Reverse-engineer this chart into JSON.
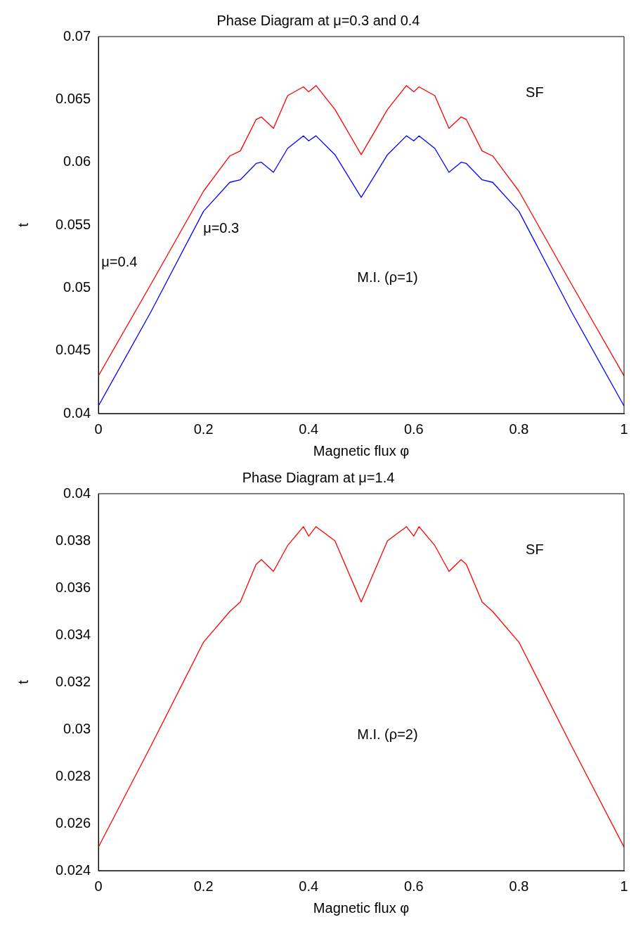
{
  "chart_data": [
    {
      "type": "line",
      "title": "Phase Diagram at μ=0.3 and 0.4",
      "xlabel": "Magnetic flux φ",
      "ylabel": "t",
      "x": [
        0,
        0.1,
        0.2,
        0.25,
        0.27,
        0.3,
        0.31,
        0.333,
        0.36,
        0.39,
        0.4,
        0.414,
        0.45,
        0.5,
        0.55,
        0.586,
        0.6,
        0.61,
        0.64,
        0.667,
        0.69,
        0.7,
        0.73,
        0.75,
        0.8,
        0.9,
        1
      ],
      "series": [
        {
          "name": "μ=0.4",
          "color": "#ff0000",
          "values": [
            0.043,
            0.0503,
            0.0577,
            0.0605,
            0.0609,
            0.0634,
            0.0636,
            0.0627,
            0.0653,
            0.066,
            0.0656,
            0.0661,
            0.0642,
            0.0606,
            0.0642,
            0.0661,
            0.0656,
            0.066,
            0.0653,
            0.0627,
            0.0636,
            0.0634,
            0.0609,
            0.0605,
            0.0577,
            0.0503,
            0.043
          ]
        },
        {
          "name": "μ=0.3",
          "color": "#0000ff",
          "values": [
            0.0406,
            0.0481,
            0.0561,
            0.0584,
            0.0586,
            0.0599,
            0.06,
            0.0592,
            0.0611,
            0.0621,
            0.0617,
            0.0621,
            0.0606,
            0.0572,
            0.0606,
            0.0621,
            0.0617,
            0.0621,
            0.0611,
            0.0592,
            0.06,
            0.0599,
            0.0586,
            0.0584,
            0.0561,
            0.0481,
            0.0406
          ]
        }
      ],
      "xlim": [
        0,
        1
      ],
      "xticks": [
        0,
        0.2,
        0.4,
        0.6,
        0.8,
        1
      ],
      "ylim": [
        0.04,
        0.07
      ],
      "yticks": [
        0.04,
        0.045,
        0.05,
        0.055,
        0.06,
        0.065,
        0.07
      ],
      "grid": false,
      "legend": false,
      "annotations": [
        "SF",
        "M.I. (ρ=1)"
      ]
    },
    {
      "type": "line",
      "title": "Phase Diagram at μ=1.4",
      "xlabel": "Magnetic flux φ",
      "ylabel": "t",
      "x": [
        0,
        0.1,
        0.2,
        0.25,
        0.27,
        0.3,
        0.31,
        0.333,
        0.36,
        0.39,
        0.4,
        0.414,
        0.45,
        0.5,
        0.55,
        0.586,
        0.6,
        0.61,
        0.64,
        0.667,
        0.69,
        0.7,
        0.73,
        0.75,
        0.8,
        0.9,
        1
      ],
      "series": [
        {
          "color": "#ff0000",
          "values": [
            0.025,
            0.0293,
            0.0337,
            0.035,
            0.0354,
            0.037,
            0.0372,
            0.0367,
            0.0378,
            0.0386,
            0.0382,
            0.0386,
            0.038,
            0.0354,
            0.038,
            0.0386,
            0.0382,
            0.0386,
            0.0378,
            0.0367,
            0.0372,
            0.037,
            0.0354,
            0.035,
            0.0337,
            0.0293,
            0.025
          ]
        }
      ],
      "xlim": [
        0,
        1
      ],
      "xticks": [
        0,
        0.2,
        0.4,
        0.6,
        0.8,
        1
      ],
      "ylim": [
        0.024,
        0.04
      ],
      "yticks": [
        0.024,
        0.026,
        0.028,
        0.03,
        0.032,
        0.034,
        0.036,
        0.038,
        0.04
      ],
      "grid": false,
      "legend": false,
      "annotations": [
        "SF",
        "M.I. (ρ=2)"
      ]
    }
  ]
}
